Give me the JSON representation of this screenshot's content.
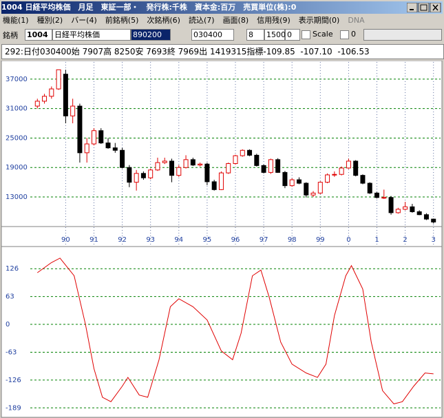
{
  "window": {
    "title": "1004 日経平均株価　月足　東証一部・　発行株:千株　資本金:百万　売買単位(株):0"
  },
  "menu": [
    "機能(1)",
    "種別(2)",
    "バー(4)",
    "前銘柄(5)",
    "次銘柄(6)",
    "読込(7)",
    "画面(8)",
    "信用残(9)",
    "表示期間(0)",
    "DNA"
  ],
  "toolbar": {
    "label": "銘柄",
    "code": "1004",
    "name": "日経平均株価",
    "field1": "890200",
    "field2": "030400",
    "field3": "8",
    "field4": "1500",
    "field5": "0",
    "scale": "Scale",
    "field6": "0"
  },
  "info": "292:日付030400始 7907高 8250安 7693終 7969出 1419315指標-109.85  -107.10  -106.53",
  "chart_data": [
    {
      "type": "candlestick",
      "xlim": [
        1988.75,
        2003.25
      ],
      "xticks": [
        {
          "value": 1990,
          "label": "90"
        },
        {
          "value": 1991,
          "label": "91"
        },
        {
          "value": 1992,
          "label": "92"
        },
        {
          "value": 1993,
          "label": "93"
        },
        {
          "value": 1994,
          "label": "94"
        },
        {
          "value": 1995,
          "label": "95"
        },
        {
          "value": 1996,
          "label": "96"
        },
        {
          "value": 1997,
          "label": "97"
        },
        {
          "value": 1998,
          "label": "98"
        },
        {
          "value": 1999,
          "label": "99"
        },
        {
          "value": 2000,
          "label": "0"
        },
        {
          "value": 2001,
          "label": "1"
        },
        {
          "value": 2002,
          "label": "2"
        },
        {
          "value": 2003,
          "label": "3"
        }
      ],
      "ylim": [
        7400,
        40200
      ],
      "yticks": [
        37000,
        31000,
        25000,
        19000,
        13000
      ],
      "grid": true,
      "up_color": "#e00000",
      "down_color": "#000000",
      "x": [
        1989,
        1989.25,
        1989.5,
        1989.75,
        1990,
        1990.25,
        1990.5,
        1990.75,
        1991,
        1991.25,
        1991.5,
        1991.75,
        1992,
        1992.25,
        1992.5,
        1992.75,
        1993,
        1993.25,
        1993.5,
        1993.75,
        1994,
        1994.25,
        1994.5,
        1994.75,
        1995,
        1995.25,
        1995.5,
        1995.75,
        1996,
        1996.25,
        1996.5,
        1996.75,
        1997,
        1997.25,
        1997.5,
        1997.75,
        1998,
        1998.25,
        1998.5,
        1998.75,
        1999,
        1999.25,
        1999.5,
        1999.75,
        2000,
        2000.25,
        2000.5,
        2000.75,
        2001,
        2001.25,
        2001.5,
        2001.75,
        2002,
        2002.25,
        2002.5,
        2002.75,
        2003
      ],
      "open": [
        31500,
        32500,
        33500,
        35000,
        38000,
        29500,
        31500,
        22000,
        23800,
        26500,
        24000,
        23000,
        22500,
        19000,
        16000,
        17800,
        16900,
        18500,
        20000,
        20300,
        17400,
        19000,
        20600,
        19500,
        19700,
        16100,
        14500,
        17900,
        19800,
        21400,
        22500,
        21500,
        19400,
        18000,
        20600,
        18000,
        15300,
        16500,
        15800,
        13400,
        13800,
        16000,
        17500,
        17600,
        18900,
        20300,
        17400,
        15800,
        13800,
        12900,
        12900,
        9800,
        10500,
        11000,
        10000,
        9400,
        8500
      ],
      "high": [
        33000,
        34000,
        35500,
        38900,
        38900,
        33000,
        32000,
        25000,
        27000,
        27000,
        25000,
        24000,
        23000,
        19500,
        18500,
        18200,
        18800,
        21000,
        21000,
        20800,
        19500,
        21500,
        21000,
        20000,
        20000,
        16500,
        18200,
        20000,
        21600,
        22700,
        22700,
        21800,
        19600,
        20800,
        20900,
        18300,
        16800,
        17000,
        16000,
        14200,
        16200,
        17800,
        18200,
        19200,
        20800,
        20500,
        17600,
        16000,
        14000,
        14500,
        13200,
        10800,
        12000,
        11600,
        10300,
        9700,
        8600
      ],
      "low": [
        31000,
        32000,
        33000,
        34800,
        28000,
        28000,
        20000,
        20000,
        23500,
        23800,
        22800,
        22000,
        18800,
        15000,
        14300,
        16500,
        16600,
        18300,
        19700,
        16000,
        17100,
        18800,
        19300,
        19200,
        15400,
        14300,
        14400,
        17700,
        19600,
        21200,
        21300,
        19200,
        17800,
        17700,
        17900,
        14800,
        15100,
        15600,
        12900,
        13000,
        13600,
        15800,
        17100,
        17400,
        18700,
        17200,
        15600,
        13600,
        12700,
        12600,
        9400,
        9600,
        10300,
        9800,
        9300,
        8300,
        7600
      ],
      "close": [
        32500,
        33500,
        35000,
        38900,
        29500,
        31500,
        22000,
        23800,
        26500,
        24000,
        23000,
        22500,
        19000,
        16000,
        17800,
        16900,
        18500,
        20000,
        20300,
        17400,
        19000,
        20600,
        19500,
        19700,
        16100,
        14500,
        17900,
        19800,
        21400,
        22500,
        21500,
        19400,
        18000,
        20600,
        18000,
        15300,
        16500,
        15800,
        13400,
        13800,
        16000,
        17500,
        17600,
        18900,
        20300,
        17400,
        15800,
        13800,
        12900,
        12900,
        9800,
        10500,
        11000,
        10000,
        9400,
        8500,
        7900
      ]
    },
    {
      "type": "line",
      "xlim": [
        1988.75,
        2003.25
      ],
      "ylim": [
        -201,
        170
      ],
      "yticks": [
        126,
        63,
        0,
        -63,
        -126,
        -189
      ],
      "grid": true,
      "series": [
        {
          "color": "#e00000",
          "x": [
            1989,
            1989.5,
            1989.8,
            1990.3,
            1990.7,
            1991,
            1991.3,
            1991.6,
            1992,
            1992.2,
            1992.6,
            1992.9,
            1993.3,
            1993.7,
            1994,
            1994.5,
            1995,
            1995.5,
            1995.9,
            1996.2,
            1996.6,
            1996.9,
            1997.2,
            1997.6,
            1998,
            1998.5,
            1998.9,
            1999.2,
            1999.5,
            1999.9,
            2000.1,
            2000.5,
            2000.8,
            2001.2,
            2001.6,
            2001.9,
            2002.3,
            2002.7,
            2003
          ],
          "values": [
            117,
            140,
            150,
            110,
            0,
            -100,
            -165,
            -175,
            -140,
            -120,
            -160,
            -165,
            -80,
            40,
            58,
            40,
            10,
            -60,
            -80,
            -20,
            110,
            123,
            60,
            -40,
            -90,
            -110,
            -120,
            -90,
            20,
            110,
            133,
            80,
            -40,
            -150,
            -180,
            -175,
            -140,
            -110,
            -112
          ]
        }
      ]
    }
  ]
}
